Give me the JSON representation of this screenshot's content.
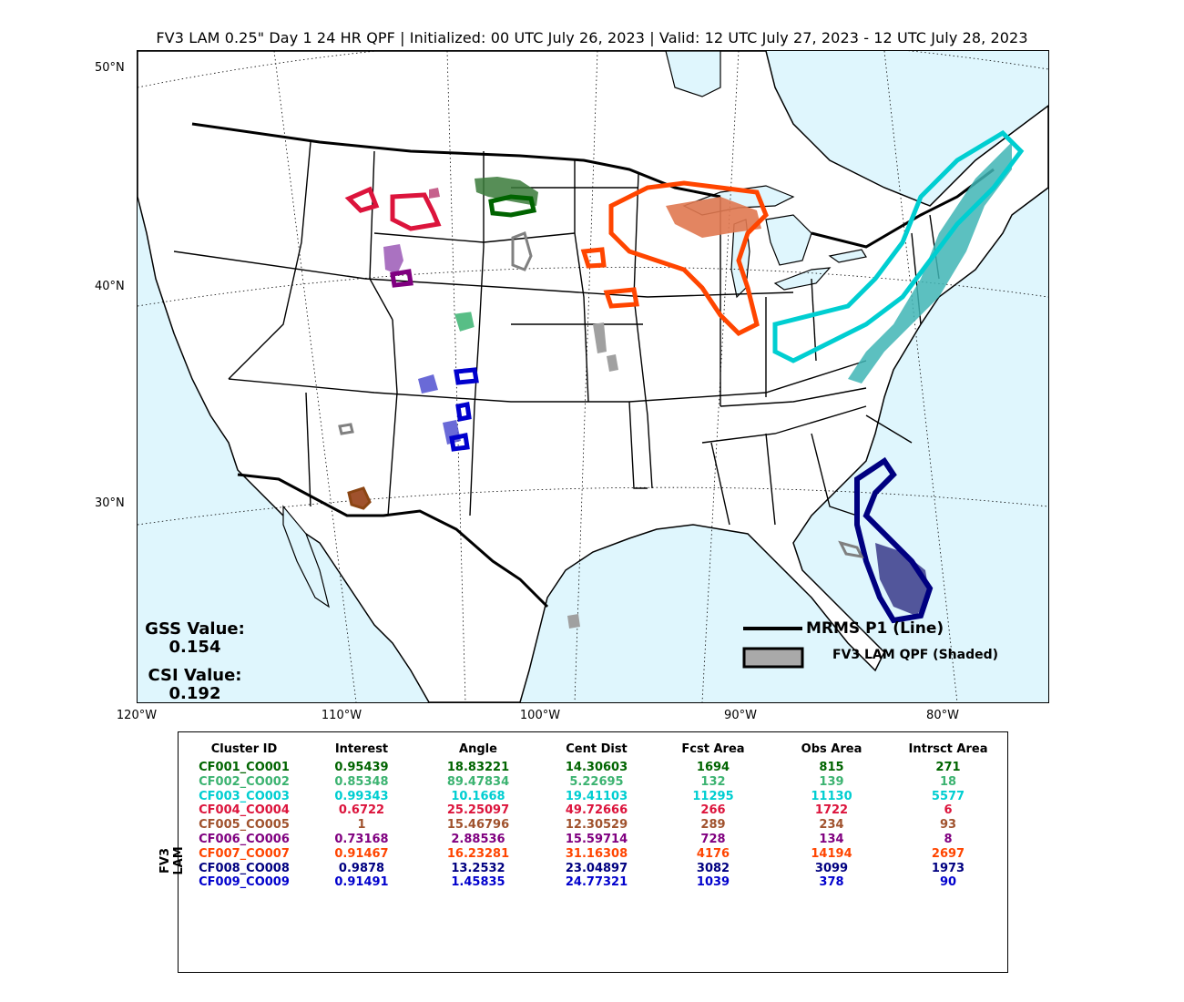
{
  "title": "FV3 LAM 0.25\" Day 1 24 HR QPF | Initialized: 00 UTC July 26, 2023 | Valid: 12 UTC July 27, 2023 - 12 UTC July 28, 2023",
  "lat_labels": [
    "50°N",
    "40°N",
    "30°N"
  ],
  "lon_labels": [
    "120°W",
    "110°W",
    "100°W",
    "90°W",
    "80°W"
  ],
  "gss": {
    "label": "GSS Value:",
    "value": "0.154"
  },
  "csi": {
    "label": "CSI Value:",
    "value": "0.192"
  },
  "legend": {
    "line_label": "MRMS P1 (Line)",
    "shaded_label": "FV3 LAM QPF (Shaded)"
  },
  "side_label": "FV3 LAM",
  "colors": {
    "ocean": "#dff6fd",
    "land": "#ffffff"
  },
  "table": {
    "headers": [
      "Cluster ID",
      "Interest",
      "Angle",
      "Cent Dist",
      "Fcst Area",
      "Obs Area",
      "Intrsct Area"
    ],
    "rows": [
      {
        "color": "#006400",
        "cells": [
          "CF001_CO001",
          "0.95439",
          "18.83221",
          "14.30603",
          "1694",
          "815",
          "271"
        ]
      },
      {
        "color": "#3cb371",
        "cells": [
          "CF002_CO002",
          "0.85348",
          "89.47834",
          "5.22695",
          "132",
          "139",
          "18"
        ]
      },
      {
        "color": "#00ced1",
        "cells": [
          "CF003_CO003",
          "0.99343",
          "10.1668",
          "19.41103",
          "11295",
          "11130",
          "5577"
        ]
      },
      {
        "color": "#dc143c",
        "cells": [
          "CF004_CO004",
          "0.6722",
          "25.25097",
          "49.72666",
          "266",
          "1722",
          "6"
        ]
      },
      {
        "color": "#a0522d",
        "cells": [
          "CF005_CO005",
          "1",
          "15.46796",
          "12.30529",
          "289",
          "234",
          "93"
        ]
      },
      {
        "color": "#800080",
        "cells": [
          "CF006_CO006",
          "0.73168",
          "2.88536",
          "15.59714",
          "728",
          "134",
          "8"
        ]
      },
      {
        "color": "#ff4500",
        "cells": [
          "CF007_CO007",
          "0.91467",
          "16.23281",
          "31.16308",
          "4176",
          "14194",
          "2697"
        ]
      },
      {
        "color": "#000080",
        "cells": [
          "CF008_CO008",
          "0.9878",
          "13.2532",
          "23.04897",
          "3082",
          "3099",
          "1973"
        ]
      },
      {
        "color": "#0000cd",
        "cells": [
          "CF009_CO009",
          "0.91491",
          "1.45835",
          "24.77321",
          "1039",
          "378",
          "90"
        ]
      }
    ]
  }
}
